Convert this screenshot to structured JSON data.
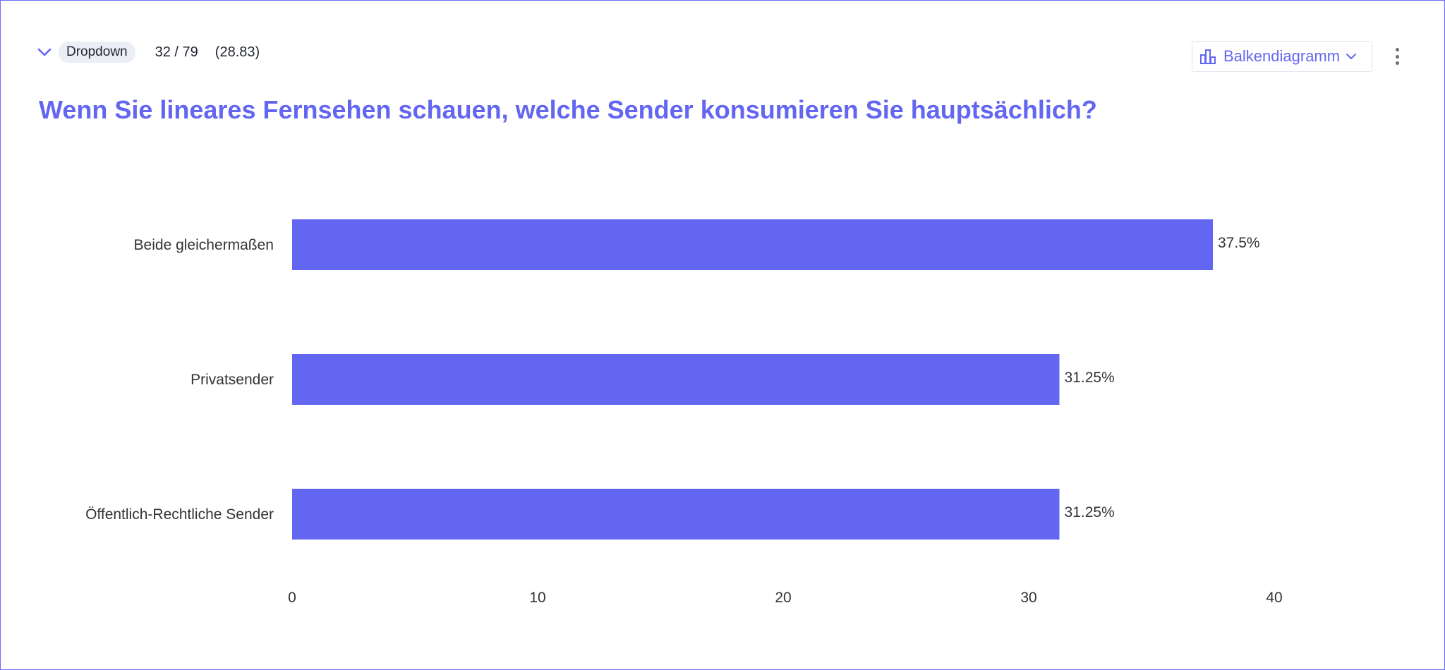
{
  "header": {
    "type_badge": "Dropdown",
    "response_count": "32 / 79",
    "response_rate": "(28.83)",
    "chart_type_label": "Balkendiagramm"
  },
  "question": {
    "title": "Wenn Sie lineares Fernsehen schauen, welche Sender konsumieren Sie hauptsächlich?"
  },
  "icons": {
    "collapse": "chevron-down-icon",
    "chart_type": "bar-chart-icon",
    "chart_type_dropdown": "chevron-down-icon",
    "more": "more-vertical-icon"
  },
  "colors": {
    "accent": "#6366f1",
    "bar": "#6366f1",
    "text": "#333333",
    "frame_border": "#6b6cf6"
  },
  "chart_data": {
    "type": "bar",
    "orientation": "horizontal",
    "categories": [
      "Beide gleichermaßen",
      "Privatsender",
      "Öffentlich-Rechtliche Sender"
    ],
    "values": [
      37.5,
      31.25,
      31.25
    ],
    "value_labels": [
      "37.5%",
      "31.25%",
      "31.25%"
    ],
    "xlim": [
      0,
      40
    ],
    "xticks": [
      0,
      10,
      20,
      30,
      40
    ],
    "xtick_labels": [
      "0",
      "10",
      "20",
      "30",
      "40"
    ],
    "grid": false,
    "legend": "none"
  }
}
